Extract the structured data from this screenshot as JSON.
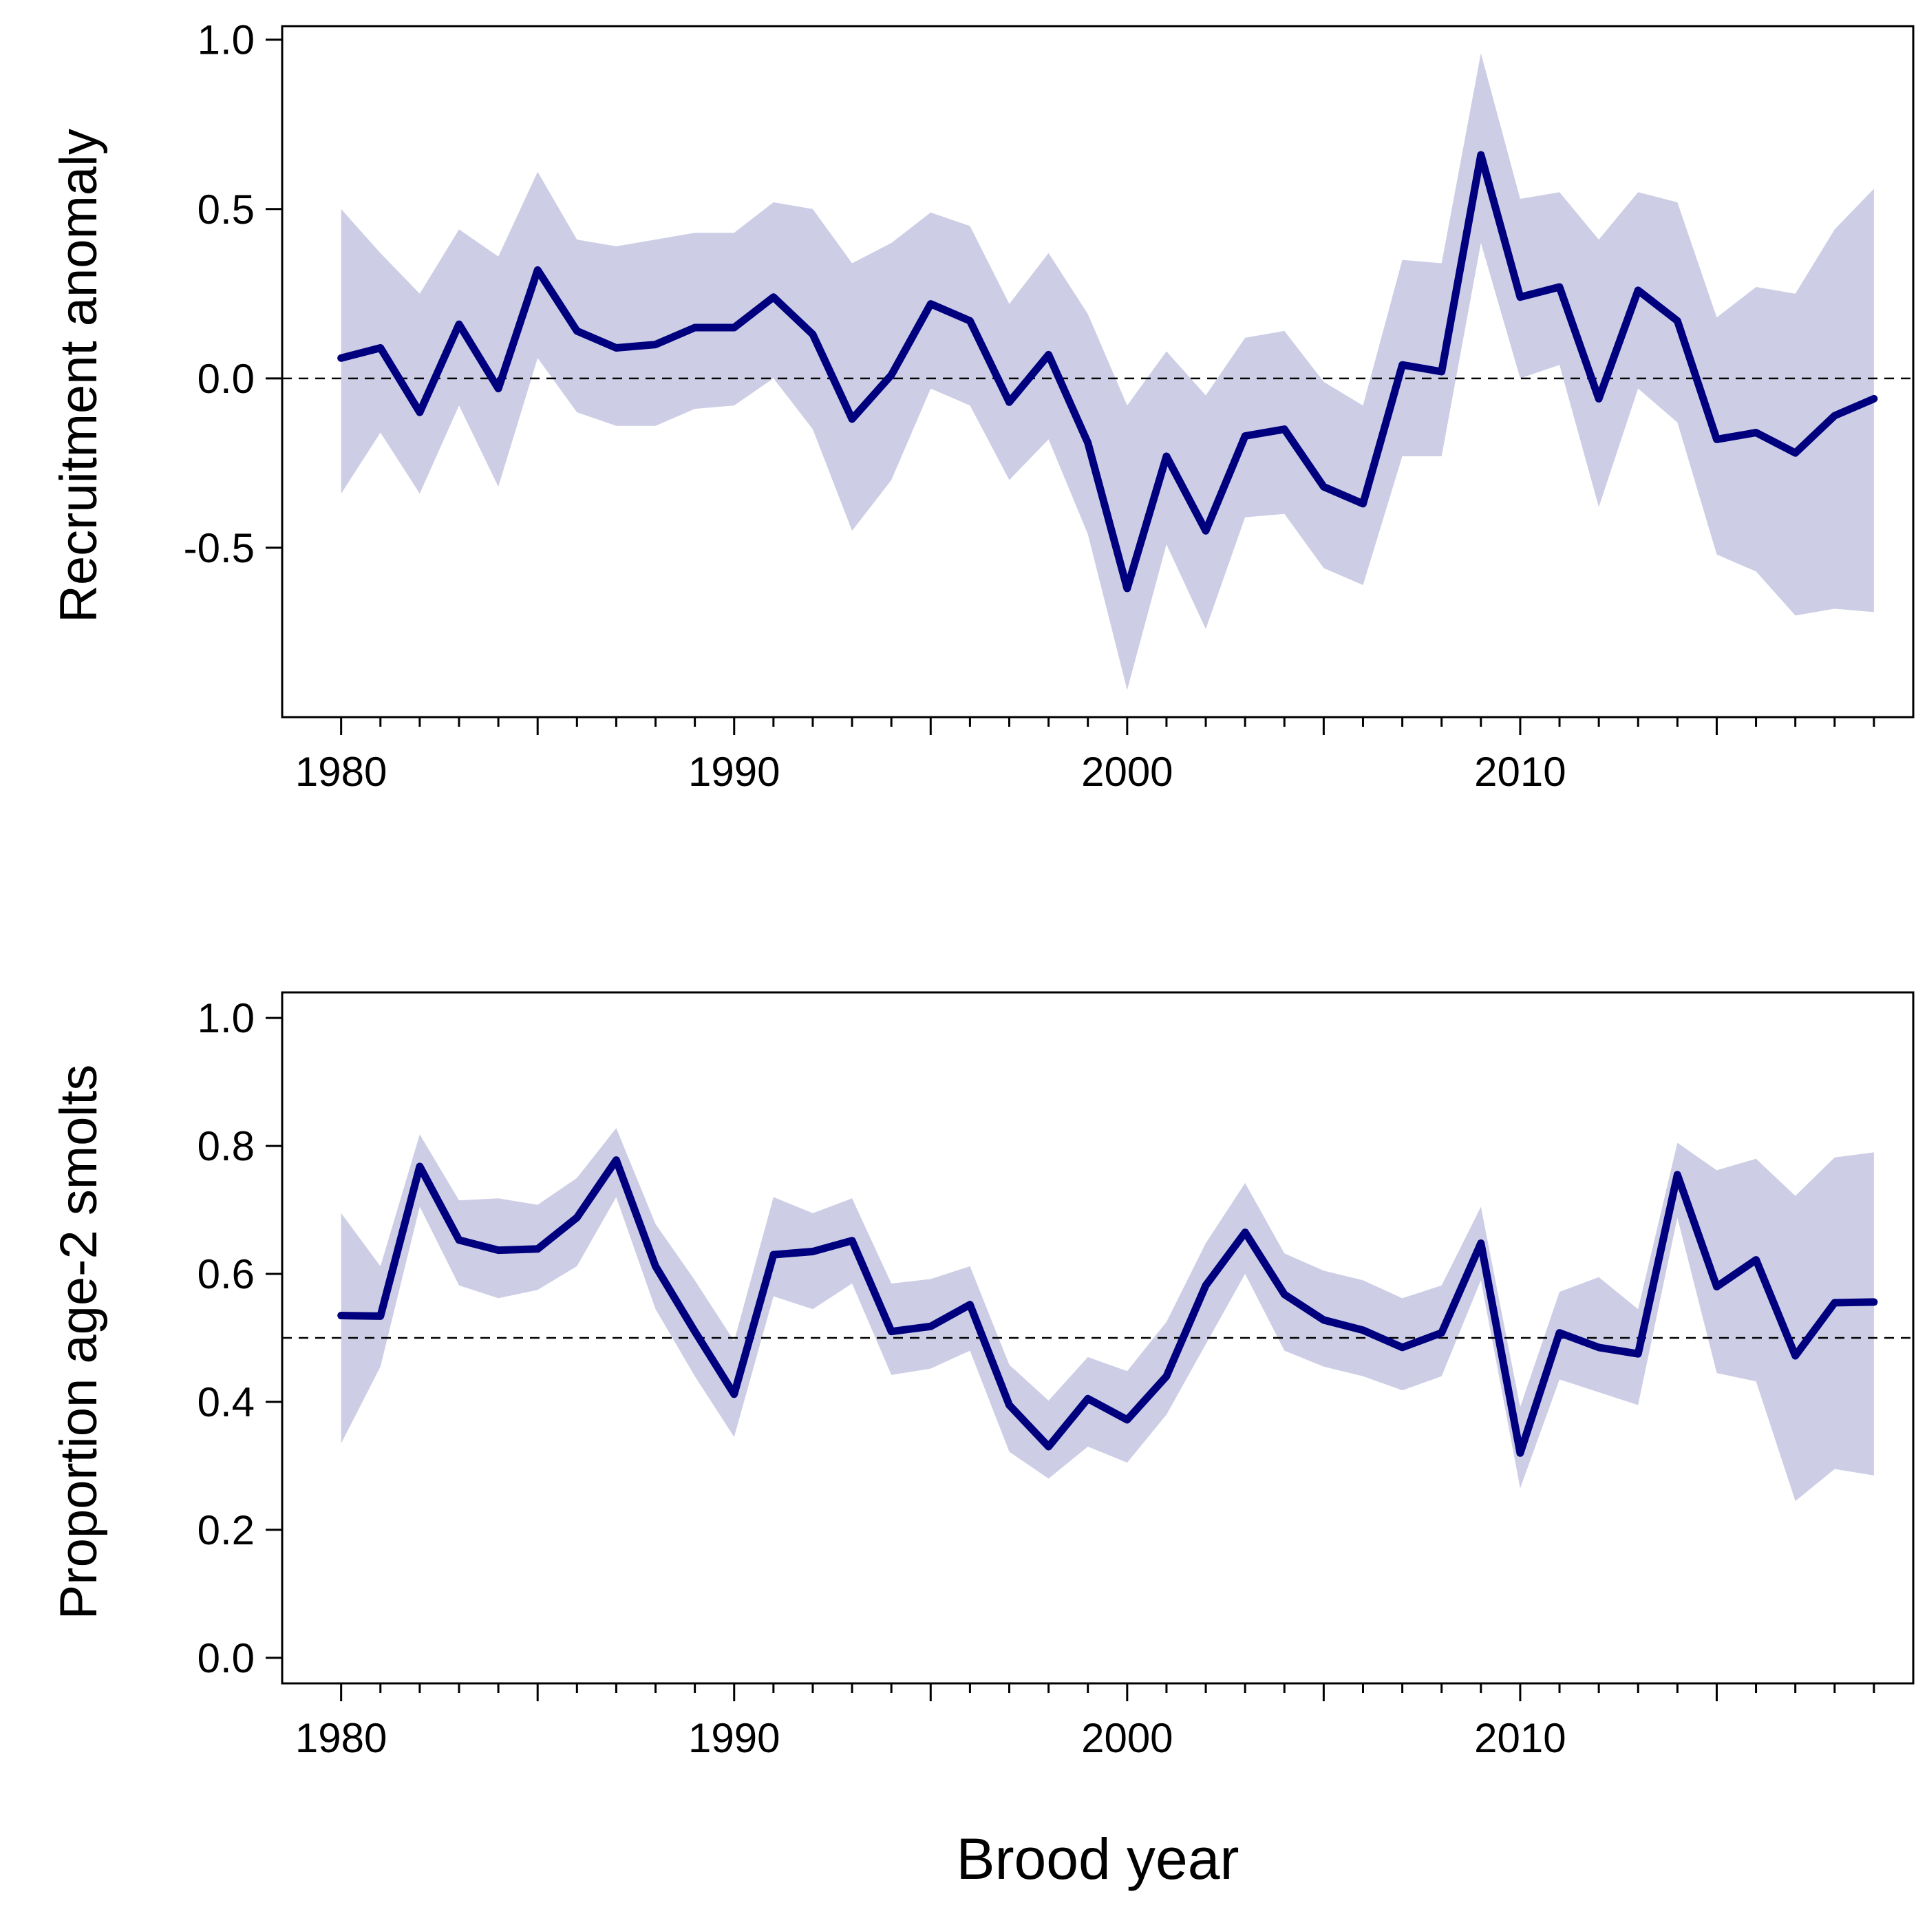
{
  "colors": {
    "line": "#00007F",
    "band": "#CDCEE6",
    "reference": "#000000"
  },
  "shared_xlabel": "Brood year",
  "chart_data": [
    {
      "type": "line",
      "ylabel": "Recruitment anomaly",
      "xlabel": "",
      "xlim": [
        1978.5,
        2020.0
      ],
      "ylim": [
        -1.0,
        1.04
      ],
      "x_ticks": [
        1980,
        1990,
        2000,
        2010
      ],
      "x_tick_labels": [
        "1980",
        "1990",
        "2000",
        "2010"
      ],
      "x_minor_ticks": [
        1980,
        1985,
        1990,
        1995,
        2000,
        2005,
        2010,
        2015
      ],
      "y_ticks": [
        -0.5,
        0.0,
        0.5,
        1.0
      ],
      "y_tick_labels": [
        "-0.5",
        "0.0",
        "0.5",
        "1.0"
      ],
      "reference_line": 0.0,
      "x": [
        1980,
        1981,
        1982,
        1983,
        1984,
        1985,
        1986,
        1987,
        1988,
        1989,
        1990,
        1991,
        1992,
        1993,
        1994,
        1995,
        1996,
        1997,
        1998,
        1999,
        2000,
        2001,
        2002,
        2003,
        2004,
        2005,
        2006,
        2007,
        2008,
        2009,
        2010,
        2011,
        2012,
        2013,
        2014,
        2015,
        2016,
        2017,
        2018,
        2019
      ],
      "series": [
        {
          "values": [
            0.06,
            0.09,
            -0.1,
            0.16,
            -0.03,
            0.32,
            0.14,
            0.09,
            0.1,
            0.15,
            0.15,
            0.24,
            0.13,
            -0.12,
            0.01,
            0.22,
            0.17,
            -0.07,
            0.07,
            -0.19,
            -0.62,
            -0.23,
            -0.45,
            -0.17,
            -0.15,
            -0.32,
            -0.37,
            0.04,
            0.02,
            0.66,
            0.24,
            0.27,
            -0.06,
            0.26,
            0.17,
            -0.18,
            -0.16,
            -0.22,
            -0.11,
            -0.06
          ]
        }
      ],
      "band": {
        "lower": [
          -0.34,
          -0.16,
          -0.34,
          -0.08,
          -0.32,
          0.06,
          -0.1,
          -0.14,
          -0.14,
          -0.09,
          -0.08,
          0.0,
          -0.15,
          -0.45,
          -0.3,
          -0.03,
          -0.08,
          -0.3,
          -0.18,
          -0.46,
          -0.92,
          -0.49,
          -0.74,
          -0.41,
          -0.4,
          -0.56,
          -0.61,
          -0.23,
          -0.23,
          0.4,
          0.0,
          0.04,
          -0.38,
          -0.03,
          -0.13,
          -0.52,
          -0.57,
          -0.7,
          -0.68,
          -0.69
        ],
        "upper": [
          0.5,
          0.37,
          0.25,
          0.44,
          0.36,
          0.61,
          0.41,
          0.39,
          0.41,
          0.43,
          0.43,
          0.52,
          0.5,
          0.34,
          0.4,
          0.49,
          0.45,
          0.22,
          0.37,
          0.19,
          -0.08,
          0.08,
          -0.05,
          0.12,
          0.14,
          -0.01,
          -0.08,
          0.35,
          0.34,
          0.96,
          0.53,
          0.55,
          0.41,
          0.55,
          0.52,
          0.18,
          0.27,
          0.25,
          0.44,
          0.56
        ]
      }
    },
    {
      "type": "line",
      "ylabel": "Proportion age-2 smolts",
      "xlabel": "",
      "xlim": [
        1978.5,
        2020.0
      ],
      "ylim": [
        -0.04,
        1.04
      ],
      "x_ticks": [
        1980,
        1990,
        2000,
        2010
      ],
      "x_tick_labels": [
        "1980",
        "1990",
        "2000",
        "2010"
      ],
      "x_minor_ticks": [
        1980,
        1985,
        1990,
        1995,
        2000,
        2005,
        2010,
        2015
      ],
      "y_ticks": [
        0.0,
        0.2,
        0.4,
        0.6,
        0.8,
        1.0
      ],
      "y_tick_labels": [
        "0.0",
        "0.2",
        "0.4",
        "0.6",
        "0.8",
        "1.0"
      ],
      "reference_line": 0.5,
      "x": [
        1980,
        1981,
        1982,
        1983,
        1984,
        1985,
        1986,
        1987,
        1988,
        1989,
        1990,
        1991,
        1992,
        1993,
        1994,
        1995,
        1996,
        1997,
        1998,
        1999,
        2000,
        2001,
        2002,
        2003,
        2004,
        2005,
        2006,
        2007,
        2008,
        2009,
        2010,
        2011,
        2012,
        2013,
        2014,
        2015,
        2016,
        2017,
        2018,
        2019
      ],
      "series": [
        {
          "values": [
            0.535,
            0.534,
            0.768,
            0.653,
            0.637,
            0.639,
            0.688,
            0.778,
            0.612,
            0.51,
            0.412,
            0.63,
            0.635,
            0.652,
            0.51,
            0.518,
            0.552,
            0.395,
            0.33,
            0.405,
            0.372,
            0.44,
            0.582,
            0.665,
            0.568,
            0.528,
            0.512,
            0.485,
            0.508,
            0.648,
            0.32,
            0.508,
            0.485,
            0.475,
            0.755,
            0.58,
            0.622,
            0.472,
            0.555,
            0.556
          ]
        }
      ],
      "band": {
        "lower": [
          0.335,
          0.455,
          0.705,
          0.582,
          0.562,
          0.575,
          0.612,
          0.72,
          0.545,
          0.44,
          0.345,
          0.565,
          0.545,
          0.585,
          0.442,
          0.452,
          0.48,
          0.322,
          0.28,
          0.33,
          0.305,
          0.38,
          0.49,
          0.6,
          0.48,
          0.455,
          0.44,
          0.418,
          0.44,
          0.59,
          0.265,
          0.435,
          0.415,
          0.395,
          0.688,
          0.445,
          0.432,
          0.245,
          0.295,
          0.285
        ],
        "upper": [
          0.695,
          0.612,
          0.818,
          0.715,
          0.718,
          0.708,
          0.75,
          0.828,
          0.678,
          0.59,
          0.495,
          0.72,
          0.695,
          0.718,
          0.585,
          0.592,
          0.612,
          0.458,
          0.402,
          0.47,
          0.448,
          0.525,
          0.648,
          0.742,
          0.632,
          0.605,
          0.59,
          0.562,
          0.582,
          0.705,
          0.392,
          0.572,
          0.595,
          0.545,
          0.805,
          0.762,
          0.78,
          0.722,
          0.782,
          0.79
        ]
      }
    }
  ]
}
